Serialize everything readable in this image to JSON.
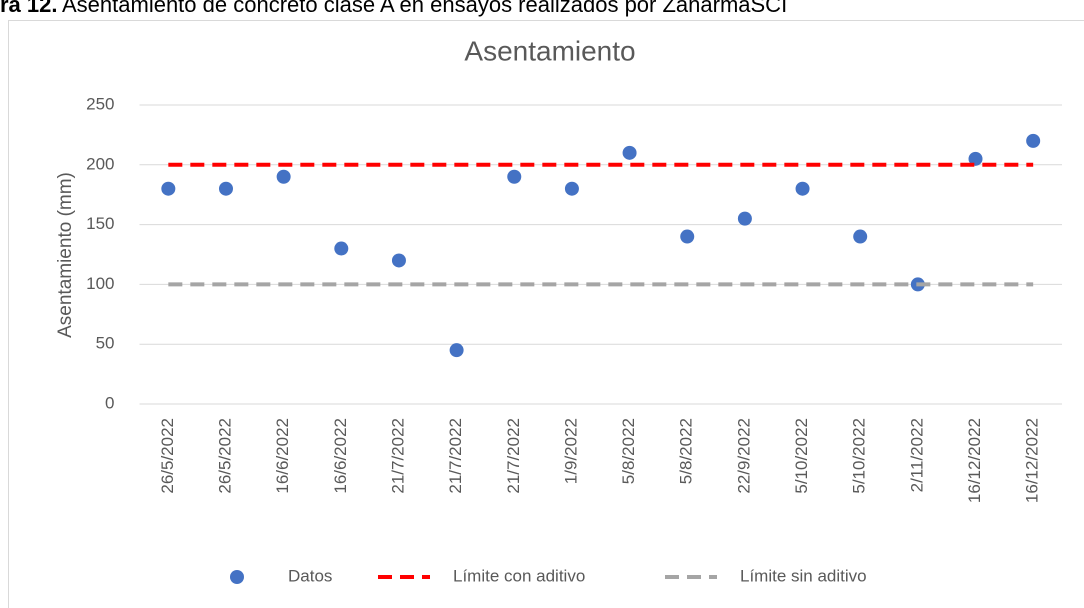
{
  "caption": {
    "label": "ra 12.",
    "text": "Asentamiento de concreto clase A en ensayos realizados por ZanarmaSCI"
  },
  "chart_data": {
    "type": "line",
    "title": "Asentamiento",
    "y_label": "Asentamiento (mm)",
    "categories": [
      "26/5/2022",
      "26/5/2022",
      "16/6/2022",
      "16/6/2022",
      "21/7/2022",
      "21/7/2022",
      "21/7/2022",
      "1/9/2022",
      "5/8/2022",
      "5/8/2022",
      "22/9/2022",
      "5/10/2022",
      "5/10/2022",
      "2/11/2022",
      "16/12/2022",
      "16/12/2022"
    ],
    "series": [
      {
        "name": "Datos",
        "color": "#4472c4",
        "style": "markers",
        "values": [
          180,
          180,
          190,
          130,
          120,
          45,
          190,
          180,
          210,
          140,
          155,
          180,
          140,
          100,
          205,
          220
        ]
      },
      {
        "name": "Límite con aditivo",
        "color": "#ff0000",
        "style": "dashed",
        "values": [
          200,
          200,
          200,
          200,
          200,
          200,
          200,
          200,
          200,
          200,
          200,
          200,
          200,
          200,
          200,
          200
        ]
      },
      {
        "name": "Límite sin aditivo",
        "color": "#a5a5a5",
        "style": "dashed",
        "values": [
          100,
          100,
          100,
          100,
          100,
          100,
          100,
          100,
          100,
          100,
          100,
          100,
          100,
          100,
          100,
          100
        ]
      }
    ],
    "ylim": [
      0,
      250
    ],
    "yticks": [
      0,
      50,
      100,
      150,
      200,
      250
    ],
    "grid": true,
    "legend": "bottom"
  }
}
